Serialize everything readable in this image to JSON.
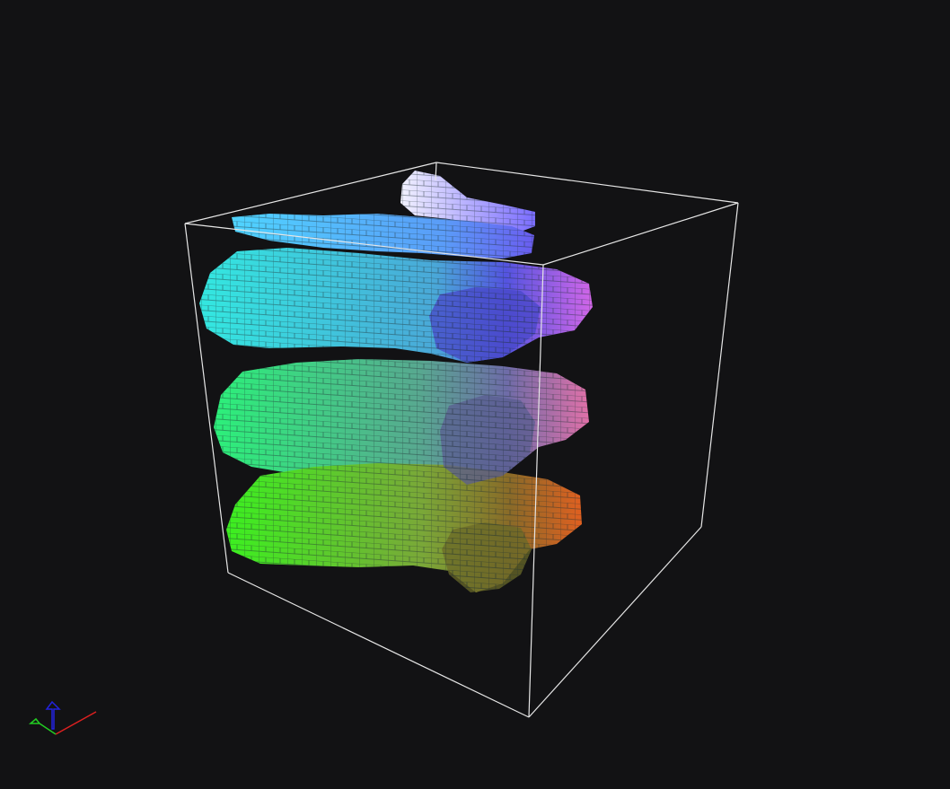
{
  "viewer": {
    "background_color": "#121214",
    "bounding_box_color": "#e6e6e6",
    "voxel_edge_color": "#2a3a3a"
  },
  "voxel_layers": [
    {
      "name": "layer-top-cap",
      "color_from": "#f2f2ff",
      "color_to": "#7a6cff"
    },
    {
      "name": "layer-cyan-band",
      "color_from": "#4fd4ff",
      "color_to": "#6a5cf0"
    },
    {
      "name": "layer-teal-band",
      "color_from": "#33e8e0",
      "color_to": "#d266e8"
    },
    {
      "name": "layer-green-band",
      "color_from": "#2cf07a",
      "color_to": "#e070a8"
    },
    {
      "name": "layer-lime-band",
      "color_from": "#3cf020",
      "color_to": "#e06020"
    }
  ],
  "axes_gizmo": {
    "x_axis_color": "#dd2020",
    "y_axis_color": "#22cc22",
    "z_axis_color": "#2222dd"
  }
}
